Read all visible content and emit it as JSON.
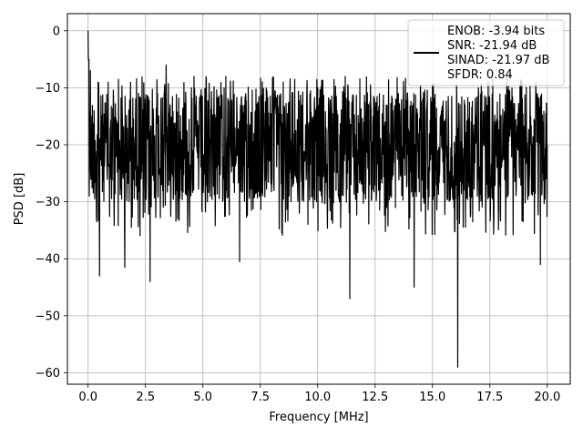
{
  "chart_data": {
    "type": "line",
    "title": "",
    "xlabel": "Frequency [MHz]",
    "ylabel": "PSD [dB]",
    "xlim": [
      -0.9,
      21.0
    ],
    "ylim": [
      -62,
      3
    ],
    "x_ticks": [
      0.0,
      2.5,
      5.0,
      7.5,
      10.0,
      12.5,
      15.0,
      17.5,
      20.0
    ],
    "x_tick_labels": [
      "0.0",
      "2.5",
      "5.0",
      "7.5",
      "10.0",
      "12.5",
      "15.0",
      "17.5",
      "20.0"
    ],
    "y_ticks": [
      0,
      -10,
      -20,
      -30,
      -40,
      -50,
      -60
    ],
    "y_tick_labels": [
      "0",
      "−10",
      "−20",
      "−30",
      "−40",
      "−50",
      "−60"
    ],
    "grid": true,
    "legend_position": "top-right",
    "legend_entries": [
      "ENOB: -3.94 bits",
      "SNR: -21.94 dB",
      "SINAD: -21.97 dB",
      "SFDR: 0.84"
    ],
    "series": [
      {
        "color": "#000000",
        "x": [
          0.0,
          0.05,
          0.1,
          0.15,
          0.5,
          0.52,
          1.0,
          1.6,
          1.62,
          2.2,
          2.7,
          2.72,
          3.2,
          3.4,
          3.9,
          4.5,
          5.2,
          6.0,
          6.6,
          6.62,
          7.5,
          8.5,
          9.2,
          10.0,
          10.8,
          11.2,
          11.4,
          11.42,
          12.3,
          13.0,
          13.4,
          14.2,
          14.22,
          15.0,
          16.1,
          16.12,
          17.0,
          18.2,
          19.5,
          19.7,
          20.0
        ],
        "y": [
          0.0,
          -29.0,
          -7.0,
          -20.0,
          -43.0,
          -19.0,
          -26.0,
          -41.5,
          -20.0,
          -11.0,
          -44.0,
          -18.0,
          -27.0,
          -6.0,
          -33.0,
          -10.0,
          -30.0,
          -8.0,
          -40.5,
          -18.0,
          -29.0,
          -9.0,
          -32.0,
          -10.0,
          -28.0,
          -8.0,
          -47.0,
          -18.0,
          -9.5,
          -31.0,
          -12.0,
          -45.0,
          -20.0,
          -9.5,
          -59.0,
          -20.0,
          -10.0,
          -29.0,
          -9.0,
          -41.0,
          -20.0
        ]
      }
    ]
  }
}
